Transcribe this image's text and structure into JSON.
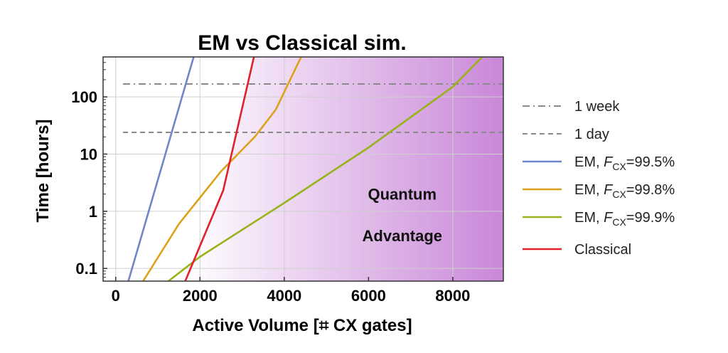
{
  "chart_data": {
    "type": "line",
    "title": "EM vs Classical sim.",
    "xlabel": "Active Volume [⌗ CX gates]",
    "ylabel": "Time [hours]",
    "xlim": [
      -300,
      9200
    ],
    "ylim": [
      0.06,
      500
    ],
    "yscale": "log",
    "grid": true,
    "legend_position": "right",
    "x_ticks": [
      {
        "value": 0,
        "label": "0"
      },
      {
        "value": 2000,
        "label": "2000"
      },
      {
        "value": 4000,
        "label": "4000"
      },
      {
        "value": 6000,
        "label": "6000"
      },
      {
        "value": 8000,
        "label": "8000"
      }
    ],
    "y_ticks": [
      {
        "value": 0.1,
        "label": "0.1"
      },
      {
        "value": 1,
        "label": "1"
      },
      {
        "value": 10,
        "label": "10"
      },
      {
        "value": 100,
        "label": "100"
      }
    ],
    "reference_lines": [
      {
        "name": "1 week",
        "y": 168,
        "style": "dashdot",
        "color": "#8a8a8a"
      },
      {
        "name": "1 day",
        "y": 24,
        "style": "dashed",
        "color": "#8a8a8a"
      }
    ],
    "series": [
      {
        "name": "EM, ",
        "name_var": "F",
        "name_sub": "CX",
        "name_value": "=99.5%",
        "color": "#6f87c9",
        "x": [
          300,
          1850
        ],
        "y": [
          0.06,
          500
        ]
      },
      {
        "name": "EM, ",
        "name_var": "F",
        "name_sub": "CX",
        "name_value": "=99.8%",
        "color": "#dda21b",
        "x": [
          650,
          1500,
          2500,
          3300,
          3800,
          4400
        ],
        "y": [
          0.06,
          0.6,
          5,
          20,
          60,
          500
        ]
      },
      {
        "name": "EM, ",
        "name_var": "F",
        "name_sub": "CX",
        "name_value": "=99.9%",
        "color": "#97b318",
        "x": [
          1250,
          2000,
          4000,
          6000,
          8000,
          8700
        ],
        "y": [
          0.06,
          0.16,
          1.4,
          13,
          150,
          500
        ]
      },
      {
        "name": "Classical",
        "color": "#e0202a",
        "x": [
          1650,
          2550,
          3280
        ],
        "y": [
          0.06,
          2.3,
          500
        ]
      }
    ],
    "quantum_region": {
      "label_line1": "Quantum",
      "label_line2": "Advantage",
      "color_start": "#ffffff",
      "color_end": "#c987d8"
    }
  }
}
